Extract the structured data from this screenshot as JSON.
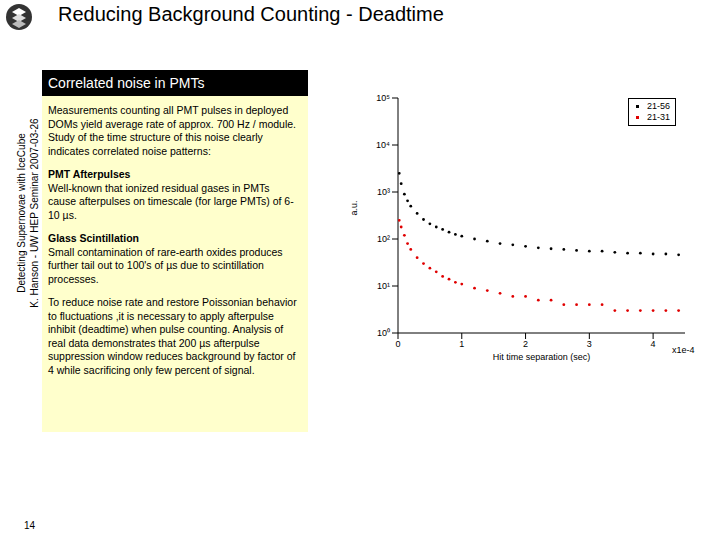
{
  "slide": {
    "title": "Reducing Background Counting - Deadtime",
    "sidebar": [
      "Detecting Supernovae with IceCube",
      "K. Hanson - UW HEP Seminar 2007-03-26"
    ],
    "page_number": "14",
    "panel": {
      "heading": "Correlated noise in PMTs",
      "paragraphs": [
        {
          "body": "Measurements counting all PMT pulses in deployed DOMs yield average rate of approx. 700 Hz / module.  Study of the time structure of this noise clearly indicates correlated noise patterns:"
        },
        {
          "heading": "PMT Afterpulses",
          "body": "Well-known that ionized residual gases in PMTs cause afterpulses on timescale (for large PMTs) of 6-10 µs."
        },
        {
          "heading": "Glass Scintillation",
          "body": "Small contamination of rare-earth oxides produces further tail out to 100's of µs due to scintillation processes."
        },
        {
          "body": "To reduce noise rate and restore Poissonian behavior to fluctuations ,it is necessary to apply afterpulse inhibit (deadtime) when pulse counting.  Analysis of real data demonstrates that 200 µs afterpulse suppression window reduces background by factor of 4 while sacrificing only few percent of signal."
        }
      ]
    }
  },
  "chart_data": {
    "type": "scatter",
    "x_label": "Hit time separation (sec)",
    "y_label": "a.u.",
    "annotations": [
      "x1e-4"
    ],
    "xlim": [
      0,
      4.5
    ],
    "xticks": [
      0,
      1,
      2,
      3,
      4
    ],
    "ylim": [
      1,
      100000
    ],
    "yticks": [
      {
        "value": 1,
        "label": "10⁰"
      },
      {
        "value": 10,
        "label": "10¹"
      },
      {
        "value": 100,
        "label": "10²"
      },
      {
        "value": 1000,
        "label": "10³"
      },
      {
        "value": 10000,
        "label": "10⁴"
      },
      {
        "value": 100000,
        "label": "10⁵"
      }
    ],
    "log": "y",
    "legend": "upper right",
    "marker": "dot",
    "series": [
      {
        "name": "21-56",
        "color": "#000000",
        "x": [
          0.02,
          0.05,
          0.1,
          0.15,
          0.2,
          0.3,
          0.4,
          0.5,
          0.6,
          0.7,
          0.8,
          0.9,
          1.0,
          1.2,
          1.4,
          1.6,
          1.8,
          2.0,
          2.2,
          2.4,
          2.6,
          2.8,
          3.0,
          3.2,
          3.4,
          3.6,
          3.8,
          4.0,
          4.2,
          4.4
        ],
        "values": [
          2500,
          1500,
          900,
          650,
          500,
          350,
          260,
          210,
          180,
          160,
          140,
          125,
          115,
          100,
          90,
          80,
          75,
          70,
          65,
          62,
          60,
          57,
          55,
          55,
          52,
          50,
          50,
          48,
          48,
          46
        ]
      },
      {
        "name": "21-31",
        "color": "#e00000",
        "x": [
          0.02,
          0.05,
          0.1,
          0.15,
          0.2,
          0.3,
          0.4,
          0.5,
          0.6,
          0.7,
          0.8,
          0.9,
          1.0,
          1.2,
          1.4,
          1.6,
          1.8,
          2.0,
          2.2,
          2.4,
          2.6,
          2.8,
          3.0,
          3.2,
          3.4,
          3.6,
          3.8,
          4.0,
          4.2,
          4.4
        ],
        "values": [
          250,
          180,
          120,
          80,
          60,
          40,
          30,
          24,
          20,
          16,
          14,
          12,
          11,
          9,
          8,
          7,
          6,
          6,
          5,
          5,
          4,
          4,
          4,
          4,
          3,
          3,
          3,
          3,
          3,
          3
        ]
      }
    ]
  }
}
